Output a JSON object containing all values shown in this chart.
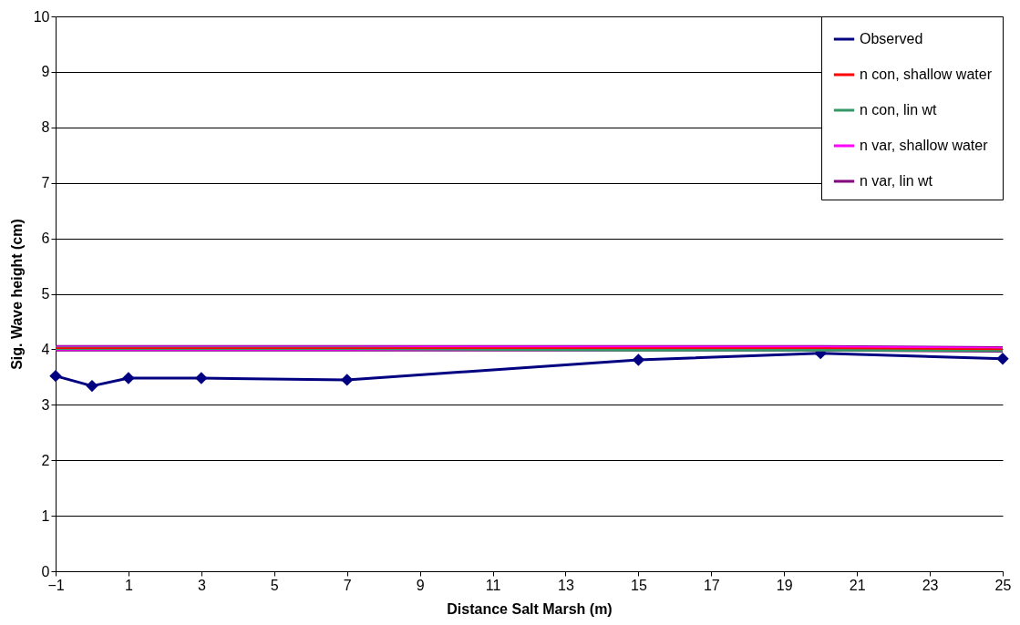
{
  "chart_data": {
    "type": "line",
    "xlabel": "Distance Salt Marsh (m)",
    "ylabel": "Sig. Wave height (cm)",
    "x": [
      -1,
      0,
      1,
      3,
      7,
      15,
      20,
      25
    ],
    "series": [
      {
        "name": "Observed",
        "color": "#000080",
        "marker": "diamond",
        "values": [
          3.52,
          3.34,
          3.48,
          3.48,
          3.45,
          3.81,
          3.93,
          3.83
        ]
      },
      {
        "name": "n con, shallow water",
        "color": "#ff0000",
        "marker": "none",
        "values": [
          4.02,
          4.02,
          4.02,
          4.02,
          4.02,
          4.02,
          4.02,
          4.0
        ]
      },
      {
        "name": "n con, lin wt",
        "color": "#339966",
        "marker": "none",
        "values": [
          4.02,
          4.02,
          4.02,
          4.02,
          4.02,
          3.99,
          3.99,
          3.98
        ]
      },
      {
        "name": "n var, shallow water",
        "color": "#ff00ff",
        "marker": "none",
        "values": [
          4.02,
          4.02,
          4.02,
          4.02,
          4.02,
          4.02,
          4.02,
          4.0
        ]
      },
      {
        "name": "n var, lin wt",
        "color": "#800080",
        "marker": "none",
        "values": [
          4.02,
          4.02,
          4.02,
          4.02,
          4.02,
          4.02,
          4.02,
          4.0
        ]
      }
    ],
    "xlim": [
      -1,
      25
    ],
    "xticks": [
      -1,
      1,
      3,
      5,
      7,
      9,
      11,
      13,
      15,
      17,
      19,
      21,
      23,
      25
    ],
    "ylim": [
      0,
      10
    ],
    "yticks": [
      0,
      1,
      2,
      3,
      4,
      5,
      6,
      7,
      8,
      9,
      10
    ],
    "grid": "y",
    "legend": "top right",
    "line_style": "solid"
  }
}
